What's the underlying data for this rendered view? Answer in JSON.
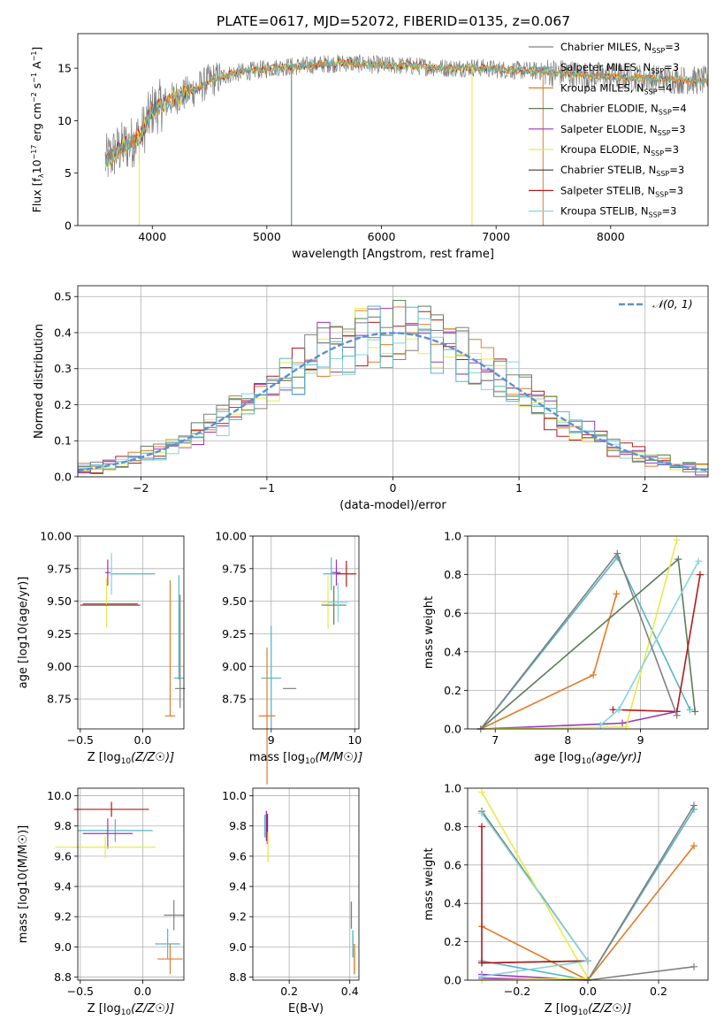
{
  "figure_title": "PLATE=0617, MJD=52072, FIBERID=0135, z=0.067",
  "series_colors": [
    "#808080",
    "#56b4c7",
    "#e07b28",
    "#5a7d5a",
    "#9a36b8",
    "#e9e94a",
    "#3c3c3c",
    "#b01a1a",
    "#85d3e0"
  ],
  "chart_data": [
    {
      "type": "line",
      "id": "spectrum",
      "xlabel": "wavelength [Angstrom, rest frame]",
      "ylabel": "Flux [f_λ10^-17 erg cm^-2 s^-1 A^-1]",
      "xlim": [
        3350,
        8850
      ],
      "ylim": [
        0,
        18.3
      ],
      "xticks": [
        4000,
        5000,
        6000,
        7000,
        8000
      ],
      "yticks": [
        0,
        5,
        10,
        15
      ],
      "grid": false,
      "legend_position": "right",
      "legend": [
        {
          "label": "Chabrier MILES, N",
          "sub": "SSP",
          "suffix": "=3"
        },
        {
          "label": "Salpeter MILES, N",
          "sub": "SSP",
          "suffix": "=3"
        },
        {
          "label": "Kroupa MILES, N",
          "sub": "SSP",
          "suffix": "=4"
        },
        {
          "label": "Chabrier ELODIE, N",
          "sub": "SSP",
          "suffix": "=4"
        },
        {
          "label": "Salpeter ELODIE, N",
          "sub": "SSP",
          "suffix": "=3"
        },
        {
          "label": "Kroupa ELODIE, N",
          "sub": "SSP",
          "suffix": "=3"
        },
        {
          "label": "Chabrier STELIB, N",
          "sub": "SSP",
          "suffix": "=3"
        },
        {
          "label": "Salpeter STELIB, N",
          "sub": "SSP",
          "suffix": "=3"
        },
        {
          "label": "Kroupa STELIB, N",
          "sub": "SSP",
          "suffix": "=3"
        }
      ],
      "continuum": {
        "x": [
          3600,
          3700,
          3800,
          3900,
          4000,
          4100,
          4200,
          4300,
          4400,
          4500,
          4700,
          4900,
          5100,
          5300,
          5500,
          5700,
          6000,
          6300,
          6600,
          6800,
          7000,
          7200,
          7400,
          7600,
          7800,
          8000,
          8200,
          8400,
          8600,
          8800
        ],
        "y": [
          6.2,
          7.2,
          7.8,
          8.6,
          11.0,
          11.6,
          12.2,
          12.6,
          13.1,
          13.8,
          14.5,
          14.8,
          15.1,
          15.2,
          15.4,
          15.5,
          15.3,
          15.2,
          15.0,
          15.1,
          14.9,
          14.8,
          14.7,
          14.5,
          14.3,
          14.2,
          14.1,
          14.0,
          13.9,
          13.8
        ]
      },
      "drop_lines": [
        {
          "x": 3885,
          "y": 0
        },
        {
          "x": 5215,
          "y": 0
        },
        {
          "x": 6790,
          "y": 0
        },
        {
          "x": 7410,
          "y": 0
        }
      ]
    },
    {
      "type": "line",
      "id": "residual_hist",
      "xlabel": "(data-model)/error",
      "ylabel": "Normed distribution",
      "xlim": [
        -2.5,
        2.5
      ],
      "ylim": [
        0,
        0.53
      ],
      "xticks": [
        -2,
        -1,
        0,
        1,
        2
      ],
      "yticks": [
        0.0,
        0.1,
        0.2,
        0.3,
        0.4,
        0.5
      ],
      "grid": true,
      "legend_position": "upper right",
      "legend_label": "𝒩(0, 1)",
      "reference_color": "#5b8fd6"
    },
    {
      "type": "scatter",
      "id": "age_vs_Z",
      "xlabel_main": "Z [log",
      "xlabel_sub": "10",
      "xlabel_tail": "(Z/Z☉)]",
      "ylabel": "age  [log10(age/yr)]",
      "xlim": [
        -0.52,
        0.33
      ],
      "ylim": [
        8.52,
        10.0
      ],
      "xticks": [
        -0.5,
        0.0
      ],
      "yticks": [
        8.75,
        9.0,
        9.25,
        9.5,
        9.75,
        10.0
      ],
      "grid": true,
      "points": [
        {
          "series": 1,
          "x": -0.08,
          "y": 9.71,
          "dx": 0.18,
          "dy": 0.0
        },
        {
          "series": 2,
          "x": 0.22,
          "y": 8.62,
          "dx": 0.04,
          "dy": 0.0
        },
        {
          "series": 3,
          "x": -0.26,
          "y": 9.48,
          "dx": 0.22,
          "dy": 0.0
        },
        {
          "series": 4,
          "x": -0.28,
          "y": 9.72,
          "dx": 0.02,
          "dy": 0.2
        },
        {
          "series": 5,
          "x": -0.29,
          "y": 9.49,
          "dx": 0.0,
          "dy": 0.38
        },
        {
          "series": 7,
          "x": -0.26,
          "y": 9.47,
          "dx": 0.24,
          "dy": 0.0
        },
        {
          "series": 8,
          "x": -0.25,
          "y": 9.71,
          "dx": 0.0,
          "dy": 0.32
        },
        {
          "series": 1,
          "x": 0.29,
          "y": 8.91,
          "dx": 0.04,
          "dy": 0.0
        },
        {
          "series": 0,
          "x": 0.3,
          "y": 8.83,
          "dx": 0.04,
          "dy": 0.0
        }
      ]
    },
    {
      "type": "scatter",
      "id": "age_vs_mass",
      "xlabel_main": "mass [log",
      "xlabel_sub": "10",
      "xlabel_tail": "(M/M☉)]",
      "xlim": [
        8.78,
        10.05
      ],
      "ylim": [
        8.52,
        10.0
      ],
      "xticks": [
        9,
        10
      ],
      "yticks": [
        8.75,
        9.0,
        9.25,
        9.5,
        9.75,
        10.0
      ],
      "grid": true
    },
    {
      "type": "line",
      "id": "massweight_vs_age",
      "xlabel_main": "age  [log",
      "xlabel_sub": "10",
      "xlabel_tail": "(age/yr)]",
      "ylabel": "mass weight",
      "xlim": [
        6.62,
        9.93
      ],
      "ylim": [
        0,
        1.0
      ],
      "xticks": [
        7,
        8,
        9
      ],
      "yticks": [
        0.0,
        0.2,
        0.4,
        0.6,
        0.8,
        1.0
      ],
      "grid": true,
      "series": [
        {
          "color": 1,
          "x": [
            6.8,
            8.68,
            9.68
          ],
          "y": [
            0.0,
            0.89,
            0.1
          ]
        },
        {
          "color": 2,
          "x": [
            6.8,
            8.35,
            8.67
          ],
          "y": [
            0.0,
            0.28,
            0.7
          ]
        },
        {
          "color": 3,
          "x": [
            6.8,
            9.52,
            9.75
          ],
          "y": [
            0.0,
            0.88,
            0.09
          ]
        },
        {
          "color": 4,
          "x": [
            6.8,
            8.75,
            9.5
          ],
          "y": [
            0.0,
            0.03,
            0.09
          ]
        },
        {
          "color": 5,
          "x": [
            6.8,
            8.8,
            9.5
          ],
          "y": [
            0.0,
            0.01,
            0.98
          ]
        },
        {
          "color": 7,
          "x": [
            8.62,
            9.5,
            9.82
          ],
          "y": [
            0.1,
            0.09,
            0.8
          ]
        },
        {
          "color": 8,
          "x": [
            8.45,
            8.7,
            9.8
          ],
          "y": [
            0.02,
            0.1,
            0.87
          ]
        },
        {
          "color": 0,
          "x": [
            6.8,
            8.68,
            9.5
          ],
          "y": [
            0.0,
            0.91,
            0.07
          ]
        }
      ]
    },
    {
      "type": "scatter",
      "id": "mass_vs_Z",
      "xlabel_main": "Z [log",
      "xlabel_sub": "10",
      "xlabel_tail": "(Z/Z☉)]",
      "ylabel": "mass [log10(M/M☉)]",
      "xlim": [
        -0.52,
        0.33
      ],
      "ylim": [
        8.78,
        10.05
      ],
      "xticks": [
        -0.5,
        0.0
      ],
      "yticks": [
        8.8,
        9.0,
        9.2,
        9.4,
        9.6,
        9.8,
        10.0
      ],
      "grid": true
    },
    {
      "type": "scatter",
      "id": "mass_vs_EBV",
      "xlabel": "E(B-V)",
      "xlim": [
        0.08,
        0.43
      ],
      "ylim": [
        8.78,
        10.05
      ],
      "xticks": [
        0.2,
        0.4
      ],
      "yticks": [
        8.8,
        9.0,
        9.2,
        9.4,
        9.6,
        9.8,
        10.0
      ],
      "grid": true
    },
    {
      "type": "line",
      "id": "massweight_vs_Z",
      "xlabel_main": "Z [log",
      "xlabel_sub": "10",
      "xlabel_tail": "(Z/Z☉)]",
      "ylabel": "mass weight",
      "xlim": [
        -0.34,
        0.34
      ],
      "ylim": [
        0,
        1.0
      ],
      "xticks": [
        -0.2,
        0.0,
        0.2
      ],
      "yticks": [
        0.0,
        0.2,
        0.4,
        0.6,
        0.8,
        1.0
      ],
      "grid": true,
      "series": [
        {
          "color": 1,
          "x": [
            0.3,
            0.0,
            -0.3
          ],
          "y": [
            0.89,
            0.0,
            0.1
          ]
        },
        {
          "color": 2,
          "x": [
            0.3,
            0.0,
            -0.3
          ],
          "y": [
            0.7,
            0.0,
            0.28
          ]
        },
        {
          "color": 3,
          "x": [
            -0.3,
            0.0,
            -0.3
          ],
          "y": [
            0.88,
            0.1,
            0.09
          ]
        },
        {
          "color": 4,
          "x": [
            -0.3,
            0.0,
            -0.3
          ],
          "y": [
            0.03,
            0.0,
            0.01
          ]
        },
        {
          "color": 5,
          "x": [
            -0.3,
            0.0,
            -0.3
          ],
          "y": [
            0.98,
            0.01,
            0.0
          ]
        },
        {
          "color": 7,
          "x": [
            -0.3,
            -0.3,
            0.0
          ],
          "y": [
            0.8,
            0.09,
            0.1
          ]
        },
        {
          "color": 8,
          "x": [
            -0.3,
            0.0,
            -0.3
          ],
          "y": [
            0.87,
            0.1,
            0.02
          ]
        },
        {
          "color": 0,
          "x": [
            0.3,
            0.0,
            0.3
          ],
          "y": [
            0.91,
            0.0,
            0.07
          ]
        }
      ]
    }
  ]
}
